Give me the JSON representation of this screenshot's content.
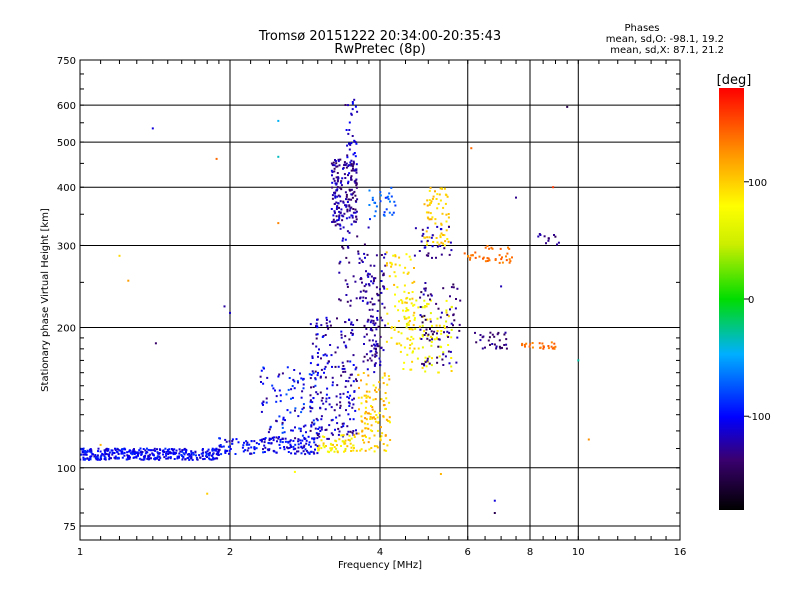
{
  "chart_data": {
    "type": "scatter",
    "title": "Tromsø 20151222 20:34:00-20:35:43",
    "subtitle": "RwPretec (8p)",
    "xlabel": "Frequency [MHz]",
    "ylabel": "Stationary phase Virtual Height [km]",
    "x_scale": "log",
    "y_scale": "log",
    "xlim": [
      1,
      16
    ],
    "ylim": [
      70,
      750
    ],
    "x_ticks": [
      "1",
      "2",
      "4",
      "6",
      "8",
      "10",
      "16"
    ],
    "y_ticks": [
      "75",
      "100",
      "200",
      "300",
      "400",
      "500",
      "600",
      "750"
    ],
    "grid": true,
    "stats": {
      "heading": "Phases",
      "line_o": "mean, sd,O: -98.1, 19.2",
      "line_x": "mean, sd,X:  87.1, 21.2"
    },
    "colorbar": {
      "label": "[deg]",
      "ticks": [
        "100",
        "0",
        "-100"
      ],
      "range": [
        -180,
        180
      ]
    },
    "clusters": [
      {
        "x": [
          1.0,
          1.9
        ],
        "y": [
          104,
          110
        ],
        "phase": [
          -120,
          -85
        ],
        "n": 360
      },
      {
        "x": [
          1.9,
          3.0
        ],
        "y": [
          107,
          116
        ],
        "phase": [
          -125,
          -85
        ],
        "n": 160
      },
      {
        "x": [
          2.3,
          3.0
        ],
        "y": [
          115,
          165
        ],
        "phase": [
          -135,
          -70
        ],
        "n": 110
      },
      {
        "x": [
          2.9,
          3.6
        ],
        "y": [
          115,
          210
        ],
        "phase": [
          -145,
          -95
        ],
        "n": 200
      },
      {
        "x": [
          3.2,
          3.6
        ],
        "y": [
          330,
          460
        ],
        "phase": [
          -145,
          -105
        ],
        "n": 190
      },
      {
        "x": [
          3.4,
          3.6
        ],
        "y": [
          460,
          620
        ],
        "phase": [
          -140,
          -95
        ],
        "n": 30
      },
      {
        "x": [
          3.3,
          3.8
        ],
        "y": [
          220,
          330
        ],
        "phase": [
          -145,
          -105
        ],
        "n": 50
      },
      {
        "x": [
          3.0,
          3.6
        ],
        "y": [
          108,
          118
        ],
        "phase": [
          60,
          110
        ],
        "n": 60
      },
      {
        "x": [
          3.6,
          4.2
        ],
        "y": [
          108,
          160
        ],
        "phase": [
          80,
          125
        ],
        "n": 120
      },
      {
        "x": [
          3.7,
          4.1
        ],
        "y": [
          160,
          290
        ],
        "phase": [
          -145,
          -110
        ],
        "n": 120
      },
      {
        "x": [
          3.8,
          4.3
        ],
        "y": [
          340,
          400
        ],
        "phase": [
          -90,
          -60
        ],
        "n": 30
      },
      {
        "x": [
          4.1,
          4.7
        ],
        "y": [
          180,
          290
        ],
        "phase": [
          70,
          110
        ],
        "n": 80
      },
      {
        "x": [
          4.4,
          5.6
        ],
        "y": [
          160,
          230
        ],
        "phase": [
          55,
          100
        ],
        "n": 100
      },
      {
        "x": [
          4.9,
          5.5
        ],
        "y": [
          300,
          400
        ],
        "phase": [
          85,
          115
        ],
        "n": 70
      },
      {
        "x": [
          4.8,
          5.8
        ],
        "y": [
          165,
          250
        ],
        "phase": [
          -150,
          -115
        ],
        "n": 80
      },
      {
        "x": [
          4.7,
          5.6
        ],
        "y": [
          280,
          330
        ],
        "phase": [
          -140,
          -110
        ],
        "n": 30
      },
      {
        "x": [
          5.9,
          7.4
        ],
        "y": [
          275,
          300
        ],
        "phase": [
          125,
          150
        ],
        "n": 40
      },
      {
        "x": [
          6.2,
          7.2
        ],
        "y": [
          180,
          195
        ],
        "phase": [
          -150,
          -120
        ],
        "n": 30
      },
      {
        "x": [
          7.6,
          9.0
        ],
        "y": [
          180,
          186
        ],
        "phase": [
          125,
          150
        ],
        "n": 25
      },
      {
        "x": [
          8.3,
          9.2
        ],
        "y": [
          300,
          320
        ],
        "phase": [
          -145,
          -120
        ],
        "n": 12
      }
    ],
    "scattered_points": [
      {
        "x": 1.1,
        "y": 112,
        "phase": 110
      },
      {
        "x": 1.2,
        "y": 285,
        "phase": 95
      },
      {
        "x": 1.25,
        "y": 252,
        "phase": 120
      },
      {
        "x": 1.4,
        "y": 535,
        "phase": -110
      },
      {
        "x": 1.42,
        "y": 185,
        "phase": -140
      },
      {
        "x": 1.8,
        "y": 88,
        "phase": 100
      },
      {
        "x": 1.95,
        "y": 222,
        "phase": -125
      },
      {
        "x": 2.0,
        "y": 215,
        "phase": -115
      },
      {
        "x": 1.88,
        "y": 460,
        "phase": 140
      },
      {
        "x": 2.5,
        "y": 555,
        "phase": -45
      },
      {
        "x": 2.5,
        "y": 465,
        "phase": -35
      },
      {
        "x": 2.5,
        "y": 335,
        "phase": 130
      },
      {
        "x": 2.7,
        "y": 98,
        "phase": 80
      },
      {
        "x": 5.3,
        "y": 97,
        "phase": 110
      },
      {
        "x": 6.1,
        "y": 485,
        "phase": 140
      },
      {
        "x": 6.8,
        "y": 85,
        "phase": -110
      },
      {
        "x": 6.8,
        "y": 80,
        "phase": -150
      },
      {
        "x": 7.0,
        "y": 245,
        "phase": -120
      },
      {
        "x": 7.5,
        "y": 380,
        "phase": -130
      },
      {
        "x": 8.9,
        "y": 400,
        "phase": 160
      },
      {
        "x": 9.5,
        "y": 595,
        "phase": -150
      },
      {
        "x": 10.5,
        "y": 115,
        "phase": 125
      },
      {
        "x": 10.0,
        "y": 170,
        "phase": -30
      }
    ]
  }
}
